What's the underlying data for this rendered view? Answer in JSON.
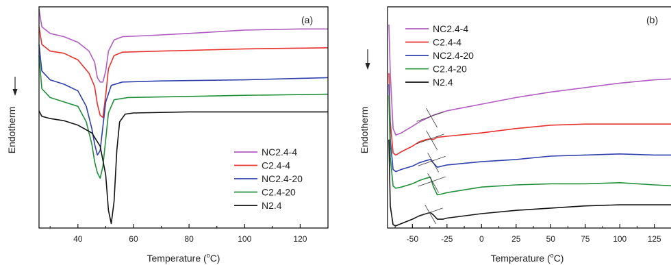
{
  "chart_data": [
    {
      "type": "line",
      "panel_label": "(a)",
      "xlabel": "Temperature (°C)",
      "ylabel": "Endotherm",
      "arrow": "down",
      "xlim": [
        26,
        130
      ],
      "ylim": [
        0,
        100
      ],
      "y_ticks_shown": false,
      "x_ticks": [
        40,
        60,
        80,
        100,
        120
      ],
      "legend_position": "bottom-right",
      "series": [
        {
          "name": "NC2.4-4",
          "color": "#b05cc0",
          "points": [
            [
              26,
              99
            ],
            [
              27,
              91
            ],
            [
              30,
              88
            ],
            [
              35,
              86.5
            ],
            [
              40,
              84
            ],
            [
              44,
              80
            ],
            [
              46,
              75
            ],
            [
              47,
              68
            ],
            [
              48,
              66
            ],
            [
              49,
              66
            ],
            [
              50,
              71
            ],
            [
              51,
              80
            ],
            [
              53,
              85
            ],
            [
              56,
              86.5
            ],
            [
              65,
              87
            ],
            [
              80,
              88
            ],
            [
              100,
              89.5
            ],
            [
              120,
              90
            ],
            [
              130,
              90
            ]
          ]
        },
        {
          "name": "C2.4-4",
          "color": "#e8302c",
          "points": [
            [
              26,
              91
            ],
            [
              27,
              83
            ],
            [
              30,
              80
            ],
            [
              35,
              79
            ],
            [
              40,
              76
            ],
            [
              44,
              70
            ],
            [
              46,
              64
            ],
            [
              47,
              56
            ],
            [
              48,
              51
            ],
            [
              49,
              50
            ],
            [
              50,
              60
            ],
            [
              51,
              72
            ],
            [
              53,
              78
            ],
            [
              56,
              79.5
            ],
            [
              70,
              80
            ],
            [
              100,
              81
            ],
            [
              130,
              81.5
            ]
          ]
        },
        {
          "name": "NC2.4-20",
          "color": "#2f3fae",
          "points": [
            [
              26,
              83
            ],
            [
              27,
              71
            ],
            [
              30,
              67
            ],
            [
              35,
              65
            ],
            [
              40,
              62
            ],
            [
              43,
              55
            ],
            [
              45,
              45
            ],
            [
              46,
              38
            ],
            [
              47,
              33
            ],
            [
              48,
              35
            ],
            [
              49,
              46
            ],
            [
              50,
              57
            ],
            [
              52,
              64.5
            ],
            [
              56,
              66
            ],
            [
              70,
              66.5
            ],
            [
              100,
              67
            ],
            [
              130,
              68
            ]
          ]
        },
        {
          "name": "C2.4-20",
          "color": "#1f8f3a",
          "points": [
            [
              26,
              78
            ],
            [
              27,
              63
            ],
            [
              30,
              59
            ],
            [
              35,
              57
            ],
            [
              40,
              55
            ],
            [
              43,
              48
            ],
            [
              45,
              38
            ],
            [
              46,
              30
            ],
            [
              47,
              25
            ],
            [
              48,
              22.5
            ],
            [
              49,
              28
            ],
            [
              50,
              40
            ],
            [
              51,
              52
            ],
            [
              53,
              58
            ],
            [
              58,
              59
            ],
            [
              80,
              59.5
            ],
            [
              100,
              60
            ],
            [
              130,
              60.5
            ]
          ]
        },
        {
          "name": "N2.4",
          "color": "#111111",
          "points": [
            [
              26,
              53
            ],
            [
              27,
              50.5
            ],
            [
              30,
              49.5
            ],
            [
              35,
              48.5
            ],
            [
              40,
              46.5
            ],
            [
              45,
              43
            ],
            [
              48,
              37
            ],
            [
              50,
              24
            ],
            [
              51,
              8
            ],
            [
              52,
              2
            ],
            [
              53,
              12
            ],
            [
              54,
              35
            ],
            [
              55,
              48
            ],
            [
              57,
              51.5
            ],
            [
              60,
              52
            ],
            [
              80,
              52.5
            ],
            [
              100,
              52.5
            ],
            [
              130,
              52.5
            ]
          ]
        }
      ]
    },
    {
      "type": "line",
      "panel_label": "(b)",
      "xlabel": "Temperature (°C)",
      "ylabel": "Endotherm",
      "arrow": "down",
      "xlim": [
        -68,
        140
      ],
      "ylim": [
        0,
        100
      ],
      "y_ticks_shown": false,
      "x_ticks": [
        -50,
        -25,
        0,
        25,
        50,
        75,
        100,
        125
      ],
      "legend_position": "top-left",
      "series": [
        {
          "name": "NC2.4-4",
          "color": "#b05cc0",
          "points": [
            [
              -67,
              92
            ],
            [
              -66,
              70
            ],
            [
              -64,
              45
            ],
            [
              -62,
              42
            ],
            [
              -58,
              43
            ],
            [
              -50,
              46
            ],
            [
              -45,
              48
            ],
            [
              -40,
              49.5
            ],
            [
              -35,
              51
            ],
            [
              -25,
              53
            ],
            [
              0,
              56
            ],
            [
              25,
              59
            ],
            [
              50,
              61.5
            ],
            [
              75,
              63.5
            ],
            [
              100,
              65.5
            ],
            [
              125,
              67
            ],
            [
              140,
              67.5
            ]
          ]
        },
        {
          "name": "C2.4-4",
          "color": "#e8302c",
          "points": [
            [
              -67,
              70
            ],
            [
              -66,
              48
            ],
            [
              -64,
              34
            ],
            [
              -62,
              33
            ],
            [
              -58,
              34.5
            ],
            [
              -50,
              37
            ],
            [
              -45,
              39
            ],
            [
              -40,
              40
            ],
            [
              -37,
              40.3
            ],
            [
              -35,
              40
            ],
            [
              -32,
              41
            ],
            [
              -25,
              41.5
            ],
            [
              0,
              43
            ],
            [
              25,
              45
            ],
            [
              50,
              46.5
            ],
            [
              75,
              47
            ],
            [
              100,
              47
            ],
            [
              125,
              47
            ],
            [
              140,
              47
            ]
          ]
        },
        {
          "name": "NC2.4-20",
          "color": "#2f3fae",
          "points": [
            [
              -67,
              65
            ],
            [
              -66,
              40
            ],
            [
              -64,
              26.5
            ],
            [
              -62,
              25.5
            ],
            [
              -58,
              26.5
            ],
            [
              -50,
              28
            ],
            [
              -45,
              29.5
            ],
            [
              -40,
              30.5
            ],
            [
              -37,
              31
            ],
            [
              -35,
              29.5
            ],
            [
              -32,
              27.5
            ],
            [
              -25,
              28.5
            ],
            [
              0,
              30
            ],
            [
              25,
              31
            ],
            [
              50,
              32.5
            ],
            [
              75,
              33
            ],
            [
              100,
              33.5
            ],
            [
              125,
              33
            ],
            [
              140,
              33
            ]
          ]
        },
        {
          "name": "C2.4-20",
          "color": "#1f8f3a",
          "points": [
            [
              -67,
              60
            ],
            [
              -66,
              32
            ],
            [
              -64,
              19
            ],
            [
              -62,
              18
            ],
            [
              -58,
              18.5
            ],
            [
              -50,
              20
            ],
            [
              -45,
              21.5
            ],
            [
              -40,
              22.5
            ],
            [
              -37,
              23
            ],
            [
              -35,
              19
            ],
            [
              -32,
              15
            ],
            [
              -28,
              15.5
            ],
            [
              -25,
              16
            ],
            [
              0,
              18.5
            ],
            [
              25,
              19.5
            ],
            [
              50,
              20
            ],
            [
              75,
              20
            ],
            [
              100,
              20.5
            ],
            [
              125,
              19.5
            ],
            [
              140,
              19
            ]
          ]
        },
        {
          "name": "N2.4",
          "color": "#111111",
          "points": [
            [
              -67,
              40
            ],
            [
              -66,
              10
            ],
            [
              -64,
              1.5
            ],
            [
              -62,
              1
            ],
            [
              -58,
              2
            ],
            [
              -50,
              4
            ],
            [
              -45,
              5.5
            ],
            [
              -40,
              6.5
            ],
            [
              -37,
              7
            ],
            [
              -35,
              6
            ],
            [
              -32,
              4
            ],
            [
              -28,
              4
            ],
            [
              -25,
              4.5
            ],
            [
              0,
              6.5
            ],
            [
              25,
              8
            ],
            [
              50,
              9
            ],
            [
              75,
              10
            ],
            [
              100,
              10.5
            ],
            [
              125,
              10.5
            ],
            [
              140,
              10.5
            ]
          ]
        }
      ]
    }
  ]
}
